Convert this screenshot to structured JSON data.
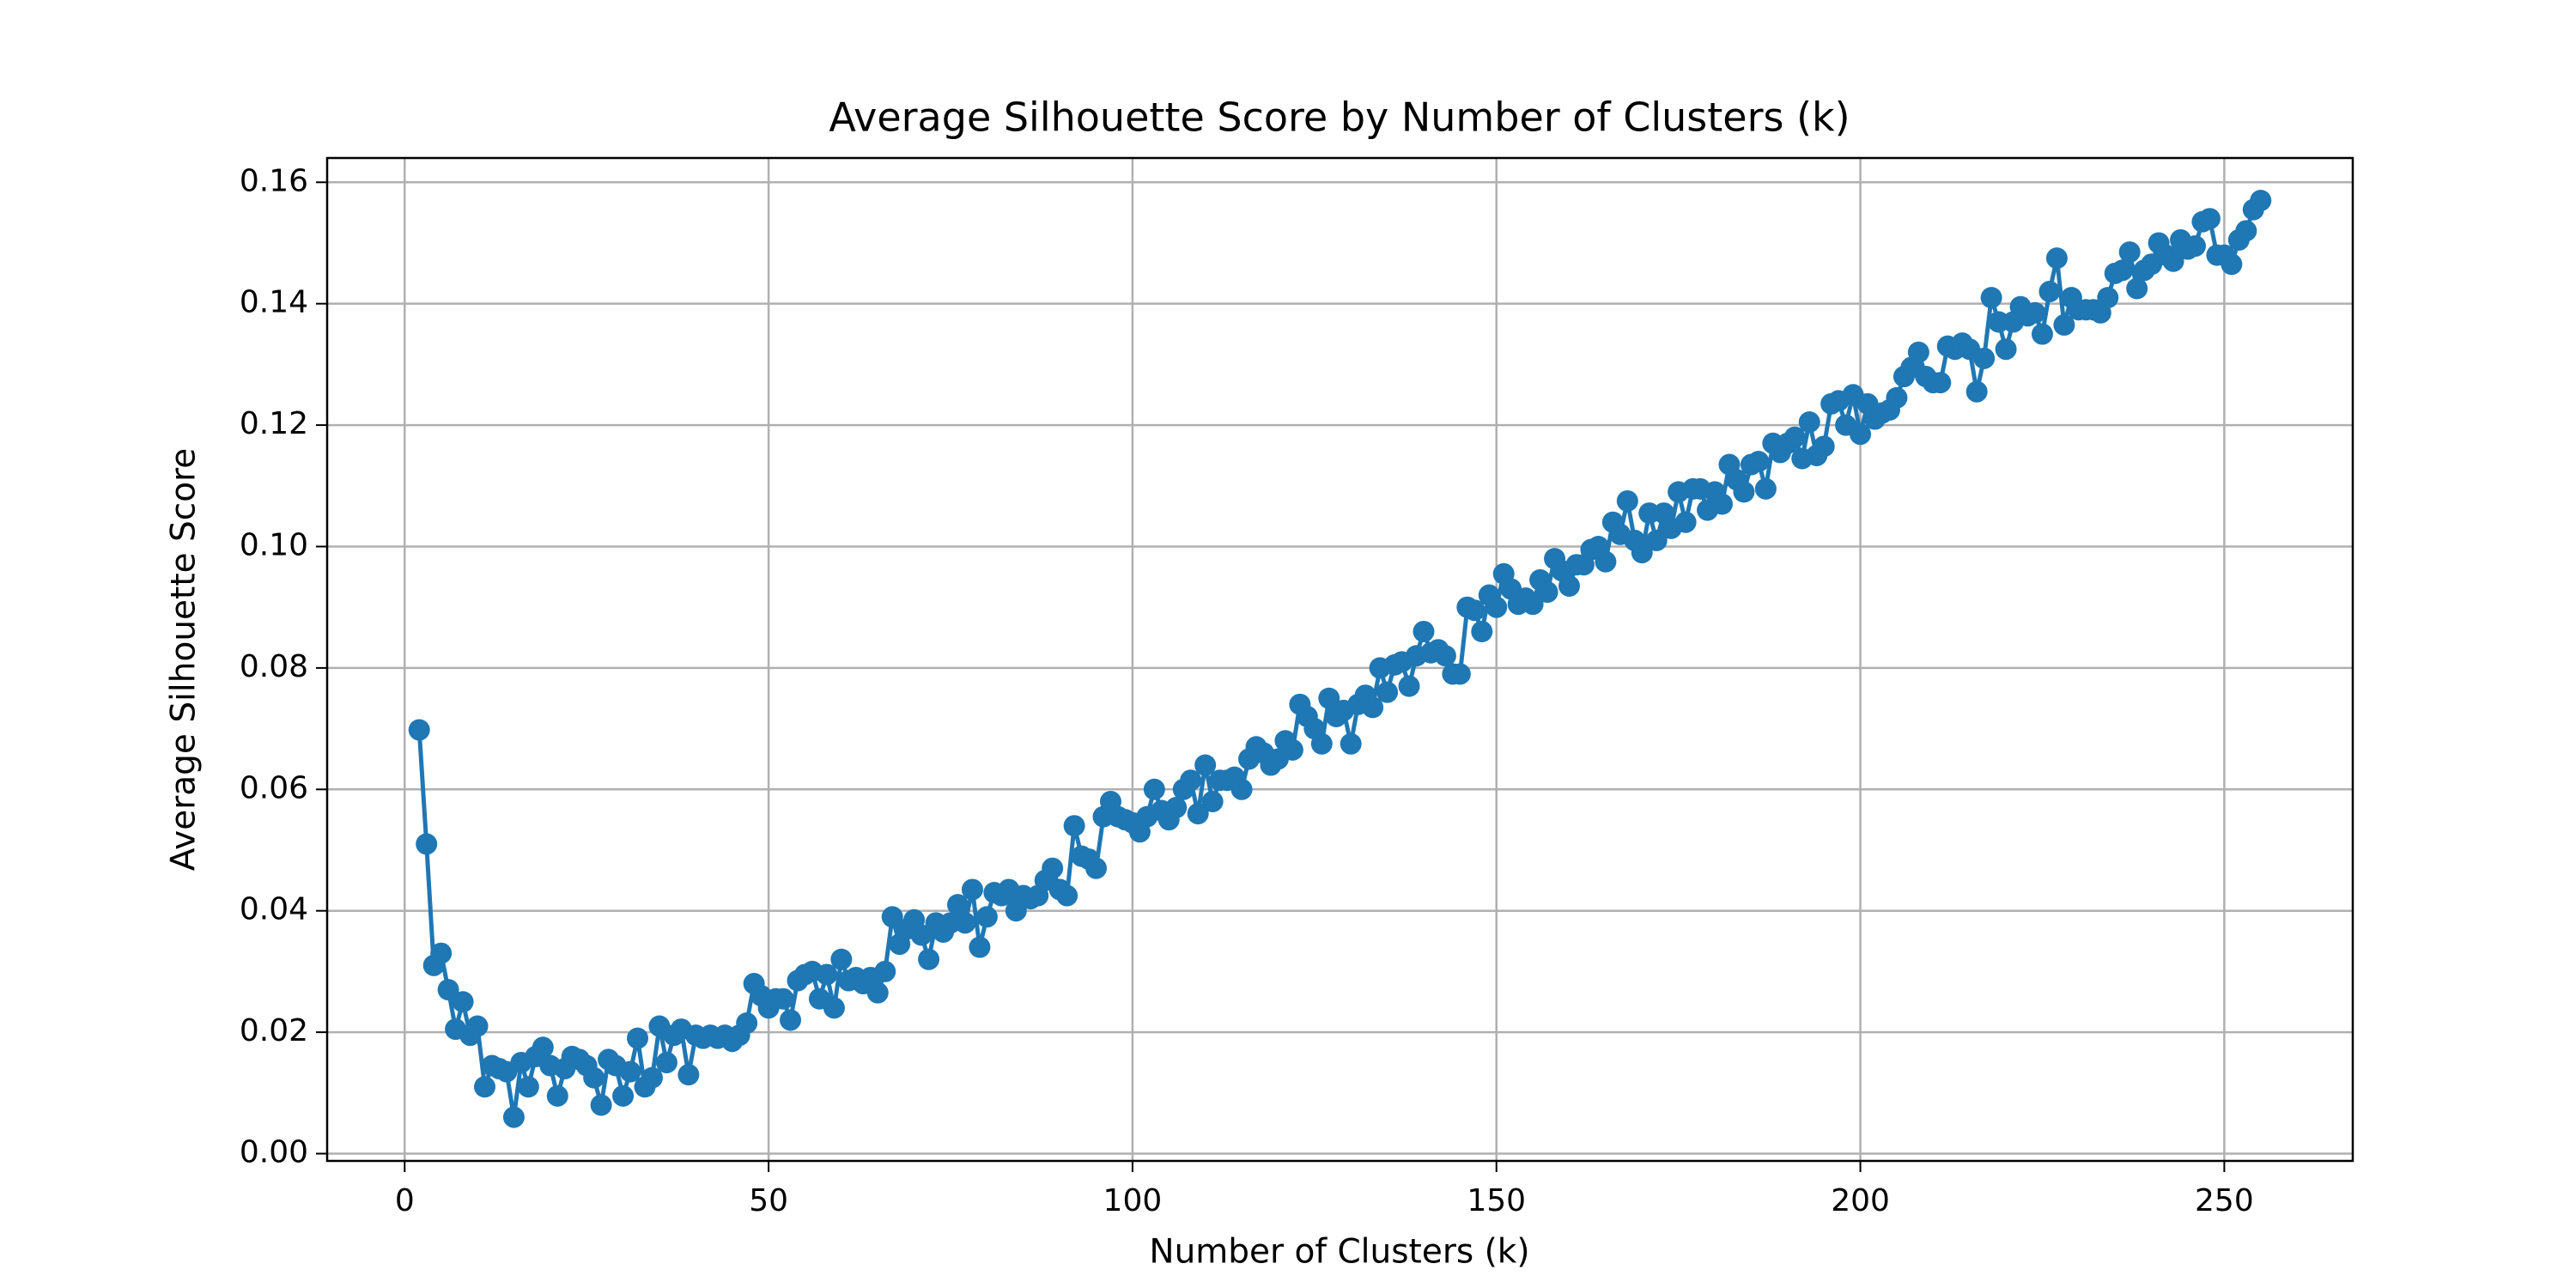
{
  "chart_data": {
    "type": "line",
    "title": "Average Silhouette Score by Number of Clusters (k)",
    "x_label": "Number of Clusters (k)",
    "y_label": "Average Silhouette Score",
    "color": "#1f77b4",
    "grid": true,
    "xlim": [
      -10.65,
      267.65
    ],
    "ylim": [
      -0.0012,
      0.164
    ],
    "xticks": [
      0,
      50,
      100,
      150,
      200,
      250
    ],
    "yticks": [
      {
        "value": 0,
        "label": "0.00"
      },
      {
        "value": 0.02,
        "label": "0.02"
      },
      {
        "value": 0.04,
        "label": "0.04"
      },
      {
        "value": 0.06,
        "label": "0.06"
      },
      {
        "value": 0.08,
        "label": "0.08"
      },
      {
        "value": 0.1,
        "label": "0.10"
      },
      {
        "value": 0.12,
        "label": "0.12"
      },
      {
        "value": 0.14,
        "label": "0.14"
      },
      {
        "value": 0.16,
        "label": "0.16"
      }
    ],
    "x": [
      2,
      3,
      4,
      5,
      6,
      7,
      8,
      9,
      10,
      11,
      12,
      13,
      14,
      15,
      16,
      17,
      18,
      19,
      20,
      21,
      22,
      23,
      24,
      25,
      26,
      27,
      28,
      29,
      30,
      31,
      32,
      33,
      34,
      35,
      36,
      37,
      38,
      39,
      40,
      41,
      42,
      43,
      44,
      45,
      46,
      47,
      48,
      49,
      50,
      51,
      52,
      53,
      54,
      55,
      56,
      57,
      58,
      59,
      60,
      61,
      62,
      63,
      64,
      65,
      66,
      67,
      68,
      69,
      70,
      71,
      72,
      73,
      74,
      75,
      76,
      77,
      78,
      79,
      80,
      81,
      82,
      83,
      84,
      85,
      86,
      87,
      88,
      89,
      90,
      91,
      92,
      93,
      94,
      95,
      96,
      97,
      98,
      99,
      100,
      101,
      102,
      103,
      104,
      105,
      106,
      107,
      108,
      109,
      110,
      111,
      112,
      113,
      114,
      115,
      116,
      117,
      118,
      119,
      120,
      121,
      122,
      123,
      124,
      125,
      126,
      127,
      128,
      129,
      130,
      131,
      132,
      133,
      134,
      135,
      136,
      137,
      138,
      139,
      140,
      141,
      142,
      143,
      144,
      145,
      146,
      147,
      148,
      149,
      150,
      151,
      152,
      153,
      154,
      155,
      156,
      157,
      158,
      159,
      160,
      161,
      162,
      163,
      164,
      165,
      166,
      167,
      168,
      169,
      170,
      171,
      172,
      173,
      174,
      175,
      176,
      177,
      178,
      179,
      180,
      181,
      182,
      183,
      184,
      185,
      186,
      187,
      188,
      189,
      190,
      191,
      192,
      193,
      194,
      195,
      196,
      197,
      198,
      199,
      200,
      201,
      202,
      203,
      204,
      205,
      206,
      207,
      208,
      209,
      210,
      211,
      212,
      213,
      214,
      215,
      216,
      217,
      218,
      219,
      220,
      221,
      222,
      223,
      224,
      225,
      226,
      227,
      228,
      229,
      230,
      231,
      232,
      233,
      234,
      235,
      236,
      237,
      238,
      239,
      240,
      241,
      242,
      243,
      244,
      245,
      246,
      247,
      248,
      249,
      250,
      251,
      252,
      253,
      254,
      255
    ],
    "values": [
      0.0698,
      0.051,
      0.031,
      0.033,
      0.027,
      0.0205,
      0.025,
      0.0195,
      0.021,
      0.011,
      0.0145,
      0.014,
      0.0135,
      0.006,
      0.015,
      0.011,
      0.016,
      0.0175,
      0.0145,
      0.0095,
      0.014,
      0.016,
      0.0155,
      0.0145,
      0.0125,
      0.008,
      0.0155,
      0.0145,
      0.0095,
      0.0135,
      0.019,
      0.011,
      0.0125,
      0.021,
      0.015,
      0.0195,
      0.0205,
      0.013,
      0.0195,
      0.019,
      0.0195,
      0.019,
      0.0195,
      0.0185,
      0.0195,
      0.0215,
      0.028,
      0.026,
      0.024,
      0.0255,
      0.0255,
      0.022,
      0.0285,
      0.0295,
      0.03,
      0.0255,
      0.0295,
      0.024,
      0.032,
      0.0285,
      0.029,
      0.028,
      0.029,
      0.0265,
      0.03,
      0.039,
      0.0345,
      0.037,
      0.0385,
      0.036,
      0.032,
      0.038,
      0.0365,
      0.038,
      0.041,
      0.038,
      0.0435,
      0.034,
      0.039,
      0.043,
      0.0425,
      0.0435,
      0.04,
      0.0425,
      0.042,
      0.0425,
      0.045,
      0.047,
      0.0435,
      0.0425,
      0.054,
      0.049,
      0.0485,
      0.047,
      0.0555,
      0.058,
      0.0555,
      0.055,
      0.0545,
      0.053,
      0.0555,
      0.06,
      0.0565,
      0.055,
      0.057,
      0.06,
      0.0615,
      0.056,
      0.064,
      0.058,
      0.0615,
      0.0615,
      0.062,
      0.06,
      0.065,
      0.067,
      0.066,
      0.064,
      0.065,
      0.068,
      0.0665,
      0.074,
      0.072,
      0.07,
      0.0675,
      0.075,
      0.072,
      0.073,
      0.0675,
      0.074,
      0.0755,
      0.0735,
      0.08,
      0.076,
      0.0805,
      0.081,
      0.077,
      0.082,
      0.086,
      0.0825,
      0.083,
      0.082,
      0.079,
      0.079,
      0.09,
      0.0895,
      0.086,
      0.092,
      0.09,
      0.0955,
      0.093,
      0.0905,
      0.0915,
      0.0905,
      0.0945,
      0.0925,
      0.098,
      0.096,
      0.0935,
      0.097,
      0.097,
      0.0995,
      0.1,
      0.0975,
      0.104,
      0.102,
      0.1075,
      0.101,
      0.099,
      0.1055,
      0.101,
      0.1055,
      0.103,
      0.109,
      0.104,
      0.1095,
      0.1095,
      0.106,
      0.109,
      0.107,
      0.1135,
      0.111,
      0.109,
      0.1135,
      0.114,
      0.1095,
      0.117,
      0.1155,
      0.117,
      0.118,
      0.1145,
      0.1205,
      0.115,
      0.1165,
      0.1235,
      0.124,
      0.12,
      0.125,
      0.1185,
      0.1235,
      0.121,
      0.122,
      0.1225,
      0.1245,
      0.128,
      0.1295,
      0.132,
      0.128,
      0.127,
      0.127,
      0.133,
      0.1325,
      0.1335,
      0.1325,
      0.1255,
      0.131,
      0.141,
      0.137,
      0.1325,
      0.137,
      0.1395,
      0.138,
      0.1385,
      0.135,
      0.142,
      0.1475,
      0.1365,
      0.141,
      0.139,
      0.139,
      0.139,
      0.1385,
      0.141,
      0.145,
      0.1455,
      0.1485,
      0.1425,
      0.1455,
      0.1465,
      0.15,
      0.148,
      0.147,
      0.1505,
      0.149,
      0.1495,
      0.1535,
      0.154,
      0.148,
      0.148,
      0.1465,
      0.1505,
      0.152,
      0.1555,
      0.157
    ]
  }
}
